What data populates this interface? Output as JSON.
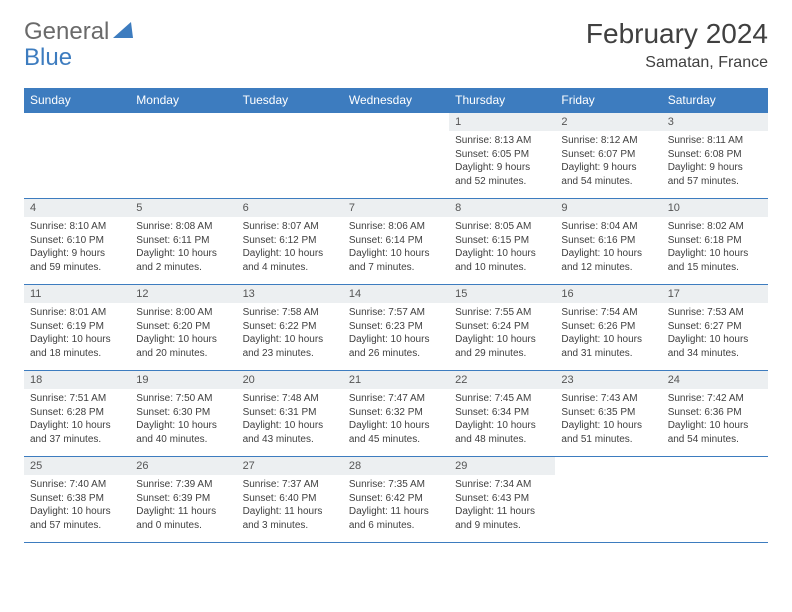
{
  "logo": {
    "general": "General",
    "blue": "Blue"
  },
  "header": {
    "month": "February 2024",
    "location": "Samatan, France"
  },
  "colors": {
    "brand": "#3d7cbf",
    "header_bg": "#3d7cbf",
    "header_text": "#ffffff",
    "daynum_bg": "#eceff1",
    "border": "#3d7cbf",
    "text": "#404040",
    "logo_gray": "#6a6a6a"
  },
  "weekdays": [
    "Sunday",
    "Monday",
    "Tuesday",
    "Wednesday",
    "Thursday",
    "Friday",
    "Saturday"
  ],
  "first_weekday_index": 4,
  "days": [
    {
      "n": 1,
      "sunrise": "8:13 AM",
      "sunset": "6:05 PM",
      "daylight": "9 hours and 52 minutes."
    },
    {
      "n": 2,
      "sunrise": "8:12 AM",
      "sunset": "6:07 PM",
      "daylight": "9 hours and 54 minutes."
    },
    {
      "n": 3,
      "sunrise": "8:11 AM",
      "sunset": "6:08 PM",
      "daylight": "9 hours and 57 minutes."
    },
    {
      "n": 4,
      "sunrise": "8:10 AM",
      "sunset": "6:10 PM",
      "daylight": "9 hours and 59 minutes."
    },
    {
      "n": 5,
      "sunrise": "8:08 AM",
      "sunset": "6:11 PM",
      "daylight": "10 hours and 2 minutes."
    },
    {
      "n": 6,
      "sunrise": "8:07 AM",
      "sunset": "6:12 PM",
      "daylight": "10 hours and 4 minutes."
    },
    {
      "n": 7,
      "sunrise": "8:06 AM",
      "sunset": "6:14 PM",
      "daylight": "10 hours and 7 minutes."
    },
    {
      "n": 8,
      "sunrise": "8:05 AM",
      "sunset": "6:15 PM",
      "daylight": "10 hours and 10 minutes."
    },
    {
      "n": 9,
      "sunrise": "8:04 AM",
      "sunset": "6:16 PM",
      "daylight": "10 hours and 12 minutes."
    },
    {
      "n": 10,
      "sunrise": "8:02 AM",
      "sunset": "6:18 PM",
      "daylight": "10 hours and 15 minutes."
    },
    {
      "n": 11,
      "sunrise": "8:01 AM",
      "sunset": "6:19 PM",
      "daylight": "10 hours and 18 minutes."
    },
    {
      "n": 12,
      "sunrise": "8:00 AM",
      "sunset": "6:20 PM",
      "daylight": "10 hours and 20 minutes."
    },
    {
      "n": 13,
      "sunrise": "7:58 AM",
      "sunset": "6:22 PM",
      "daylight": "10 hours and 23 minutes."
    },
    {
      "n": 14,
      "sunrise": "7:57 AM",
      "sunset": "6:23 PM",
      "daylight": "10 hours and 26 minutes."
    },
    {
      "n": 15,
      "sunrise": "7:55 AM",
      "sunset": "6:24 PM",
      "daylight": "10 hours and 29 minutes."
    },
    {
      "n": 16,
      "sunrise": "7:54 AM",
      "sunset": "6:26 PM",
      "daylight": "10 hours and 31 minutes."
    },
    {
      "n": 17,
      "sunrise": "7:53 AM",
      "sunset": "6:27 PM",
      "daylight": "10 hours and 34 minutes."
    },
    {
      "n": 18,
      "sunrise": "7:51 AM",
      "sunset": "6:28 PM",
      "daylight": "10 hours and 37 minutes."
    },
    {
      "n": 19,
      "sunrise": "7:50 AM",
      "sunset": "6:30 PM",
      "daylight": "10 hours and 40 minutes."
    },
    {
      "n": 20,
      "sunrise": "7:48 AM",
      "sunset": "6:31 PM",
      "daylight": "10 hours and 43 minutes."
    },
    {
      "n": 21,
      "sunrise": "7:47 AM",
      "sunset": "6:32 PM",
      "daylight": "10 hours and 45 minutes."
    },
    {
      "n": 22,
      "sunrise": "7:45 AM",
      "sunset": "6:34 PM",
      "daylight": "10 hours and 48 minutes."
    },
    {
      "n": 23,
      "sunrise": "7:43 AM",
      "sunset": "6:35 PM",
      "daylight": "10 hours and 51 minutes."
    },
    {
      "n": 24,
      "sunrise": "7:42 AM",
      "sunset": "6:36 PM",
      "daylight": "10 hours and 54 minutes."
    },
    {
      "n": 25,
      "sunrise": "7:40 AM",
      "sunset": "6:38 PM",
      "daylight": "10 hours and 57 minutes."
    },
    {
      "n": 26,
      "sunrise": "7:39 AM",
      "sunset": "6:39 PM",
      "daylight": "11 hours and 0 minutes."
    },
    {
      "n": 27,
      "sunrise": "7:37 AM",
      "sunset": "6:40 PM",
      "daylight": "11 hours and 3 minutes."
    },
    {
      "n": 28,
      "sunrise": "7:35 AM",
      "sunset": "6:42 PM",
      "daylight": "11 hours and 6 minutes."
    },
    {
      "n": 29,
      "sunrise": "7:34 AM",
      "sunset": "6:43 PM",
      "daylight": "11 hours and 9 minutes."
    }
  ],
  "labels": {
    "sunrise": "Sunrise:",
    "sunset": "Sunset:",
    "daylight": "Daylight:"
  }
}
